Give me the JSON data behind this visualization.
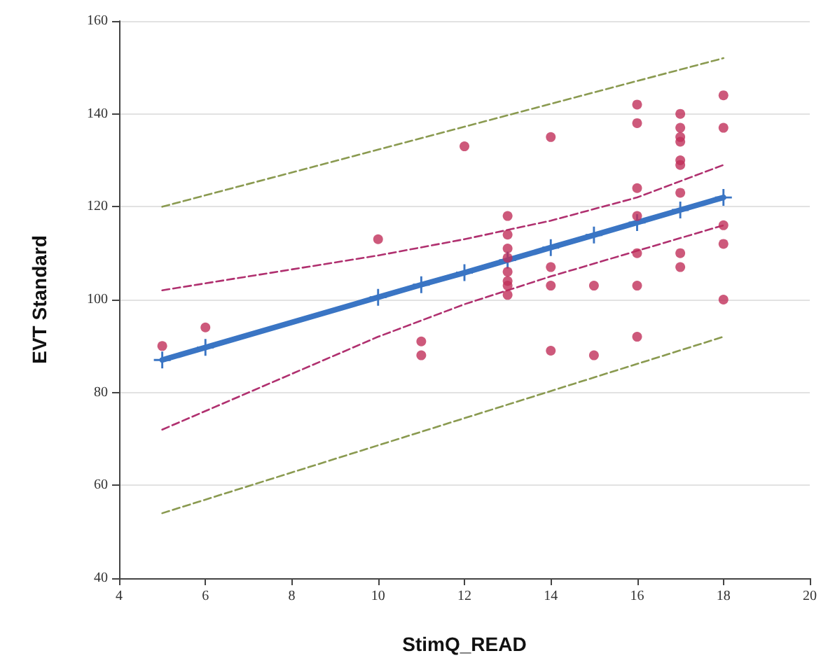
{
  "chart_data": {
    "type": "scatter",
    "xlabel": "StimQ_READ",
    "ylabel": "EVT Standard",
    "xlim": [
      4,
      20
    ],
    "xticks": [
      4,
      6,
      8,
      10,
      12,
      14,
      16,
      18,
      20
    ],
    "ylim": [
      40,
      160
    ],
    "yticks": [
      40,
      60,
      80,
      100,
      120,
      140,
      160
    ],
    "grid": "y",
    "series": [
      {
        "marker": "circle",
        "color": "#c0305a",
        "x": [
          5,
          6,
          10,
          11,
          11,
          12,
          13,
          13,
          13,
          13,
          13,
          13,
          13,
          13,
          14,
          14,
          14,
          14,
          15,
          15,
          16,
          16,
          16,
          16,
          16,
          16,
          16,
          17,
          17,
          17,
          17,
          17,
          17,
          17,
          17,
          17,
          18,
          18,
          18,
          18,
          18
        ],
        "values": [
          90,
          94,
          113,
          91,
          88,
          133,
          118,
          114,
          111,
          109,
          106,
          104,
          103,
          101,
          135,
          107,
          103,
          89,
          103,
          88,
          142,
          138,
          124,
          118,
          110,
          103,
          92,
          140,
          137,
          135,
          134,
          130,
          129,
          123,
          110,
          107,
          144,
          137,
          116,
          112,
          100
        ]
      },
      {
        "type": "line",
        "marker": "cross",
        "line_style": "solid",
        "color": "#3a75c4",
        "x": [
          5,
          6,
          10,
          11,
          12,
          13,
          14,
          15,
          16,
          17,
          18
        ],
        "values": [
          87,
          89.7,
          100.5,
          103.2,
          105.8,
          108.5,
          111.2,
          113.9,
          116.6,
          119.3,
          122
        ]
      },
      {
        "type": "line",
        "marker": "none",
        "line_style": "dashed",
        "color": "#b0306f",
        "x": [
          5,
          10,
          12,
          14,
          16,
          18
        ],
        "values": [
          102,
          109.5,
          113,
          117,
          122,
          129
        ]
      },
      {
        "type": "line",
        "marker": "none",
        "line_style": "dashed",
        "color": "#b0306f",
        "x": [
          5,
          10,
          12,
          14,
          16,
          18
        ],
        "values": [
          72,
          92,
          99,
          105,
          110.5,
          116
        ]
      },
      {
        "type": "line",
        "marker": "none",
        "line_style": "dashed",
        "color": "#8a9a50",
        "x": [
          5,
          18
        ],
        "values": [
          120,
          152
        ]
      },
      {
        "type": "line",
        "marker": "none",
        "line_style": "dashed",
        "color": "#8a9a50",
        "x": [
          5,
          18
        ],
        "values": [
          54,
          92
        ]
      }
    ]
  }
}
